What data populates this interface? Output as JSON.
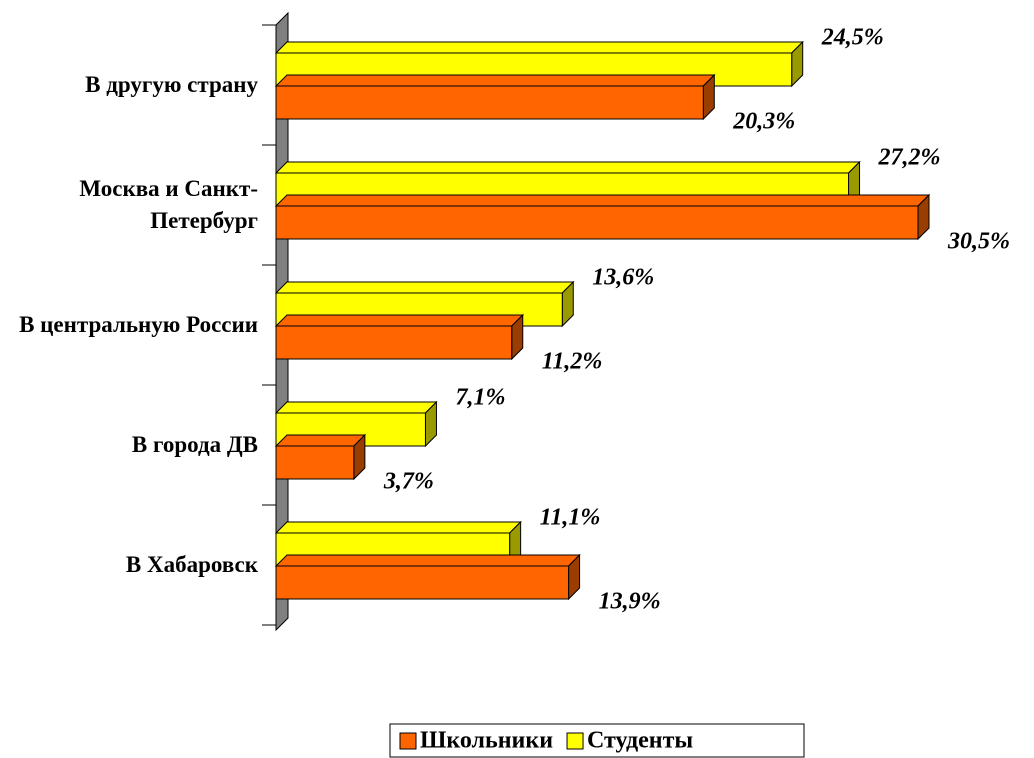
{
  "chart_data": {
    "type": "bar3d_horizontal",
    "categories": [
      "В другую страну",
      "Москва и Санкт-Петербург",
      "В центральную России",
      "В города ДВ",
      "В Хабаровск"
    ],
    "series": [
      {
        "name": "Школьники",
        "color": "#ff6600",
        "values": [
          20.3,
          30.5,
          11.2,
          3.7,
          13.9
        ],
        "value_labels": [
          "20,3%",
          "30,5%",
          "11,2%",
          "3,7%",
          "13,9%"
        ]
      },
      {
        "name": "Студенты",
        "color": "#ffff00",
        "values": [
          24.5,
          27.2,
          13.6,
          7.1,
          11.1
        ],
        "value_labels": [
          "24,5%",
          "27,2%",
          "13,6%",
          "7,1%",
          "11,1%"
        ]
      }
    ],
    "legend": "bottom"
  }
}
